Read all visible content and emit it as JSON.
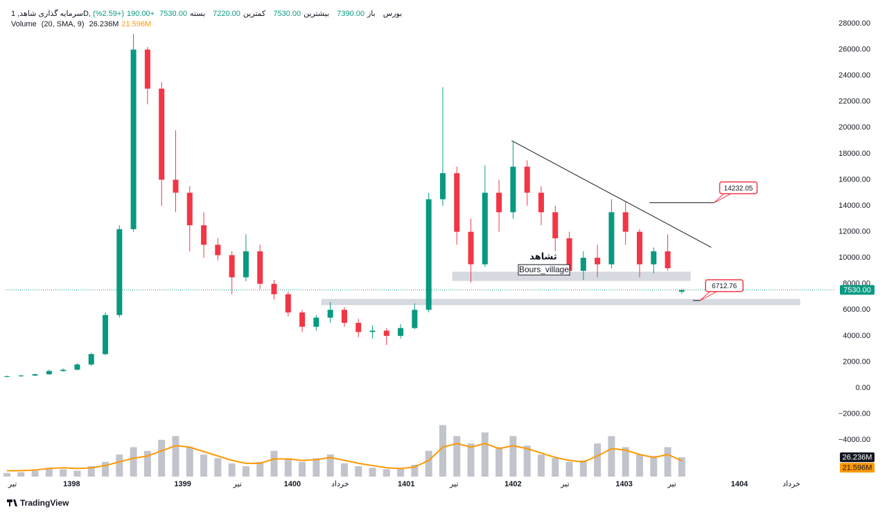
{
  "legend": {
    "symbol": "سرمایه گذاری شاهد, 1D, بورس",
    "ohlc": [
      {
        "label": "باز",
        "value": {
          "value": 7390,
          "label": "7390.00"
        }
      },
      {
        "label": "بیشترین",
        "value": {
          "value": 7530,
          "label": "7530.00"
        }
      },
      {
        "label": "کمترین",
        "value": {
          "value": 7220,
          "label": "7220.00"
        }
      },
      {
        "label": "بسته",
        "value": {
          "value": 7530,
          "label": "7530.00"
        }
      }
    ],
    "change": {
      "value": 190,
      "label": "+190.00"
    },
    "change_pct": {
      "value": 2.59,
      "label": "(+2.59%)"
    }
  },
  "chart_data": {
    "type": "candlestick",
    "xlim": [
      -0.1,
      58.9
    ],
    "xticks": [
      {
        "value": 0.4,
        "label": "تیر"
      },
      {
        "value": 4.6,
        "label": "1398"
      },
      {
        "value": 12.5,
        "label": "1399"
      },
      {
        "value": 16.4,
        "label": "تیر"
      },
      {
        "value": 20.3,
        "label": "1400"
      },
      {
        "value": 23.7,
        "label": "خرداد"
      },
      {
        "value": 28.4,
        "label": "1401"
      },
      {
        "value": 31.8,
        "label": "تیر"
      },
      {
        "value": 36.0,
        "label": "1402"
      },
      {
        "value": 39.7,
        "label": "تیر"
      },
      {
        "value": 43.9,
        "label": "1403"
      },
      {
        "value": 47.3,
        "label": "تیر"
      },
      {
        "value": 52.1,
        "label": "1404"
      },
      {
        "value": 55.8,
        "label": "خرداد"
      }
    ],
    "ylim": [
      -6814,
      29810
    ],
    "yticks": [
      {
        "value": 28000,
        "label": "28000.00"
      },
      {
        "value": 26000,
        "label": "26000.00"
      },
      {
        "value": 24000,
        "label": "24000.00"
      },
      {
        "value": 22000,
        "label": "22000.00"
      },
      {
        "value": 20000,
        "label": "20000.00"
      },
      {
        "value": 18000,
        "label": "18000.00"
      },
      {
        "value": 16000,
        "label": "16000.00"
      },
      {
        "value": 14000,
        "label": "14000.00"
      },
      {
        "value": 12000,
        "label": "12000.00"
      },
      {
        "value": 10000,
        "label": "10000.00"
      },
      {
        "value": 8000,
        "label": "8000.00"
      },
      {
        "value": 6000,
        "label": "6000.00"
      },
      {
        "value": 4000,
        "label": "4000.00"
      },
      {
        "value": 2000,
        "label": "2000.00"
      },
      {
        "value": 0,
        "label": "0.00"
      },
      {
        "value": -2000,
        "label": "−2000.00"
      },
      {
        "value": -4000,
        "label": "−4000.00"
      }
    ],
    "up_color": "#089981",
    "down_color": "#f23645",
    "open": [
      850,
      900,
      950,
      1050,
      1300,
      1400,
      1800,
      2600,
      5600,
      12200,
      26000,
      23000,
      16000,
      15000,
      12500,
      11000,
      10200,
      8500,
      10500,
      8000,
      7200,
      5800,
      4700,
      5400,
      6000,
      5000,
      4300,
      4400,
      4000,
      4600,
      6000,
      14500,
      16500,
      12000,
      9500,
      15000,
      13500,
      17000,
      15000,
      13500,
      11500,
      9000,
      10000,
      9500,
      13500,
      12000,
      9500,
      10500,
      7390
    ],
    "high": [
      950,
      1000,
      1100,
      1400,
      1500,
      1900,
      2700,
      5800,
      12500,
      27200,
      26200,
      23500,
      19800,
      15500,
      13500,
      11500,
      10500,
      11800,
      11000,
      8300,
      7400,
      6000,
      5600,
      6600,
      6200,
      5300,
      4800,
      4600,
      4900,
      6500,
      15000,
      23100,
      17000,
      13000,
      17100,
      16000,
      18900,
      17500,
      15500,
      14000,
      12000,
      10500,
      11000,
      14500,
      14300,
      12200,
      10800,
      11800,
      7530
    ],
    "low": [
      800,
      850,
      900,
      1000,
      1250,
      1350,
      1700,
      2500,
      5400,
      12000,
      21800,
      14000,
      13500,
      10500,
      10000,
      9800,
      7200,
      8200,
      7600,
      6800,
      5500,
      4300,
      4400,
      5000,
      4700,
      3900,
      3800,
      3300,
      3800,
      4500,
      5800,
      14000,
      11000,
      8100,
      9300,
      12000,
      13000,
      14000,
      12500,
      10500,
      8600,
      8300,
      8500,
      9200,
      11000,
      8500,
      8800,
      9000,
      7220
    ],
    "close": [
      900,
      950,
      1050,
      1300,
      1400,
      1800,
      2600,
      5600,
      12200,
      26000,
      23000,
      16000,
      15000,
      12500,
      11000,
      10200,
      8500,
      10500,
      8000,
      7200,
      5800,
      4700,
      5400,
      6000,
      5000,
      4300,
      4400,
      4000,
      4600,
      6000,
      14500,
      16500,
      12000,
      9500,
      15000,
      13500,
      17000,
      15000,
      13500,
      11500,
      9000,
      10000,
      9500,
      13500,
      12000,
      9500,
      10500,
      9200,
      7530
    ],
    "last_price": {
      "value": 7530,
      "label": "7530.00"
    },
    "volume": {
      "name": "Volume",
      "params": "(20, SMA, 9)",
      "color": "#b2b5be",
      "vlim": [
        0,
        160
      ],
      "values": [
        5,
        6,
        8,
        12,
        10,
        8,
        14,
        20,
        30,
        40,
        35,
        50,
        55,
        40,
        30,
        25,
        18,
        14,
        20,
        35,
        25,
        20,
        25,
        30,
        18,
        14,
        12,
        10,
        12,
        16,
        35,
        70,
        55,
        45,
        60,
        40,
        55,
        42,
        30,
        25,
        20,
        22,
        45,
        55,
        40,
        30,
        28,
        40,
        26.236
      ],
      "last_label": "26.236M"
    },
    "volume_ma": {
      "color": "#ff9800",
      "values": [
        8,
        8,
        9,
        11,
        12,
        11,
        12,
        15,
        20,
        25,
        28,
        35,
        42,
        40,
        34,
        28,
        22,
        18,
        18,
        24,
        24,
        22,
        23,
        26,
        22,
        18,
        15,
        12,
        11,
        13,
        22,
        40,
        45,
        40,
        45,
        38,
        42,
        38,
        32,
        26,
        22,
        20,
        28,
        38,
        36,
        30,
        26,
        30,
        21.596
      ],
      "last_label": "21.596M"
    },
    "trendline": {
      "x": [
        35.9,
        50.1
      ],
      "y": [
        19000,
        10800
      ]
    },
    "levels": [
      {
        "x": [
          45.7,
          50.3
        ],
        "value": 14232.05
      },
      {
        "x": [
          48.8,
          49.3
        ],
        "value": 6712.76
      }
    ],
    "zones": [
      {
        "x": [
          31.7,
          48.6
        ],
        "y": [
          8250,
          8900
        ]
      },
      {
        "x": [
          22.4,
          56.4
        ],
        "y": [
          6390,
          6810
        ]
      }
    ],
    "symbol_text": "ثشاهد",
    "watermark": "Bours_village"
  },
  "footer": {
    "brand": "TradingView"
  }
}
